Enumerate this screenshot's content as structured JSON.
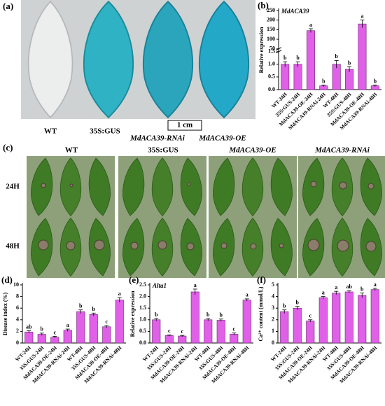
{
  "photos": {
    "a": {
      "panel_label": "(a)",
      "labels": [
        "WT",
        "35S:GUS",
        "MdACA39-RNAi",
        "MdACA39-OE"
      ],
      "scale_bar": "1 cm"
    },
    "c": {
      "panel_label": "(c)",
      "columns": [
        "WT",
        "35S:GUS",
        "MdACA39-OE",
        "MdACA39-RNAi"
      ],
      "rows": [
        "24H",
        "48H"
      ]
    }
  },
  "chart_data": [
    {
      "type": "bar",
      "panel_label": "(b)",
      "title": "MdACA39",
      "ylabel": "Relative expression",
      "color": "#e060e8",
      "categories": [
        "WT-24H",
        "35S:GUS-24H",
        "MdACA39-OE-24H",
        "MdACA39-RNAi-24H",
        "WT-48H",
        "35S:GUS-48H",
        "MdACA39-OE-48H",
        "MdACA39-RNAi-48H"
      ],
      "values": [
        1.0,
        1.0,
        145,
        0.15,
        1.0,
        0.8,
        180,
        0.15
      ],
      "errors": [
        0.1,
        0.1,
        10,
        0.03,
        0.15,
        0.1,
        20,
        0.03
      ],
      "letters": [
        "b",
        "b",
        "a",
        "b",
        "b",
        "b",
        "a",
        "b"
      ],
      "ylim": [
        0,
        250
      ],
      "axis_break": [
        1.5,
        50
      ],
      "yticks": [
        {
          "value": 0,
          "label": "0.0"
        },
        {
          "value": 0.5,
          "label": "0.5"
        },
        {
          "value": 1,
          "label": "1.0"
        },
        {
          "value": 1.5,
          "label": "1.5"
        },
        50,
        100,
        150,
        200,
        250
      ]
    },
    {
      "type": "bar",
      "panel_label": "(d)",
      "ylabel": "Disease index (%)",
      "color": "#e060e8",
      "categories": [
        "WT-24H",
        "35S:GUS-24H",
        "MdACA39-OE-24H",
        "MdACA39-RNAi-24H",
        "WT-48H",
        "35S:GUS-48H",
        "MdACA39-OE-48H",
        "MdACA39-RNAi-48H"
      ],
      "values": [
        1.9,
        1.5,
        1.0,
        2.2,
        5.4,
        4.9,
        2.8,
        7.4
      ],
      "errors": [
        0.2,
        0.2,
        0.15,
        0.2,
        0.3,
        0.25,
        0.2,
        0.4
      ],
      "letters": [
        "ab",
        "b",
        "c",
        "a",
        "b",
        "b",
        "c",
        "a"
      ],
      "ylim": [
        0,
        10
      ],
      "yticks": [
        0,
        2,
        4,
        6,
        8,
        10
      ]
    },
    {
      "type": "bar",
      "panel_label": "(e)",
      "title": "Alta1",
      "ylabel": "Relative expression",
      "color": "#e060e8",
      "categories": [
        "WT-24H",
        "35S:GUS-24H",
        "MdACA39-OE-24H",
        "MdACA39-RNAi-24H",
        "WT-48H",
        "35S:GUS-48H",
        "MdACA39-OE-48H",
        "MdACA39-RNAi-48H"
      ],
      "values": [
        1.0,
        0.32,
        0.3,
        2.2,
        1.0,
        0.98,
        0.38,
        1.85
      ],
      "errors": [
        0.05,
        0.03,
        0.03,
        0.12,
        0.05,
        0.05,
        0.05,
        0.05
      ],
      "letters": [
        "b",
        "c",
        "c",
        "a",
        "b",
        "b",
        "c",
        "a"
      ],
      "ylim": [
        0,
        2.5
      ],
      "yticks": [
        {
          "value": 0,
          "label": "0.0"
        },
        {
          "value": 0.5,
          "label": "0.5"
        },
        {
          "value": 1,
          "label": "1.0"
        },
        {
          "value": 1.5,
          "label": "1.5"
        },
        {
          "value": 2,
          "label": "2.0"
        },
        {
          "value": 2.5,
          "label": "2.5"
        }
      ]
    },
    {
      "type": "bar",
      "panel_label": "(f)",
      "ylabel": "Ca²⁺ content (mmol/L)",
      "color": "#e060e8",
      "categories": [
        "WT-24H",
        "35S:GUS-24H",
        "MdACA39-OE-24H",
        "MdACA39-RNAi-24H",
        "WT-48H",
        "35S:GUS-48H",
        "MdACA39-OE-48H",
        "MdACA39-RNAi-48H"
      ],
      "values": [
        2.7,
        3.0,
        1.9,
        3.9,
        4.3,
        4.4,
        4.1,
        4.6
      ],
      "errors": [
        0.15,
        0.15,
        0.1,
        0.1,
        0.15,
        0.1,
        0.2,
        0.1
      ],
      "letters": [
        "b",
        "b",
        "c",
        "a",
        "a",
        "ab",
        "b",
        "a"
      ],
      "ylim": [
        0,
        5
      ],
      "yticks": [
        0,
        1,
        2,
        3,
        4,
        5
      ]
    }
  ]
}
